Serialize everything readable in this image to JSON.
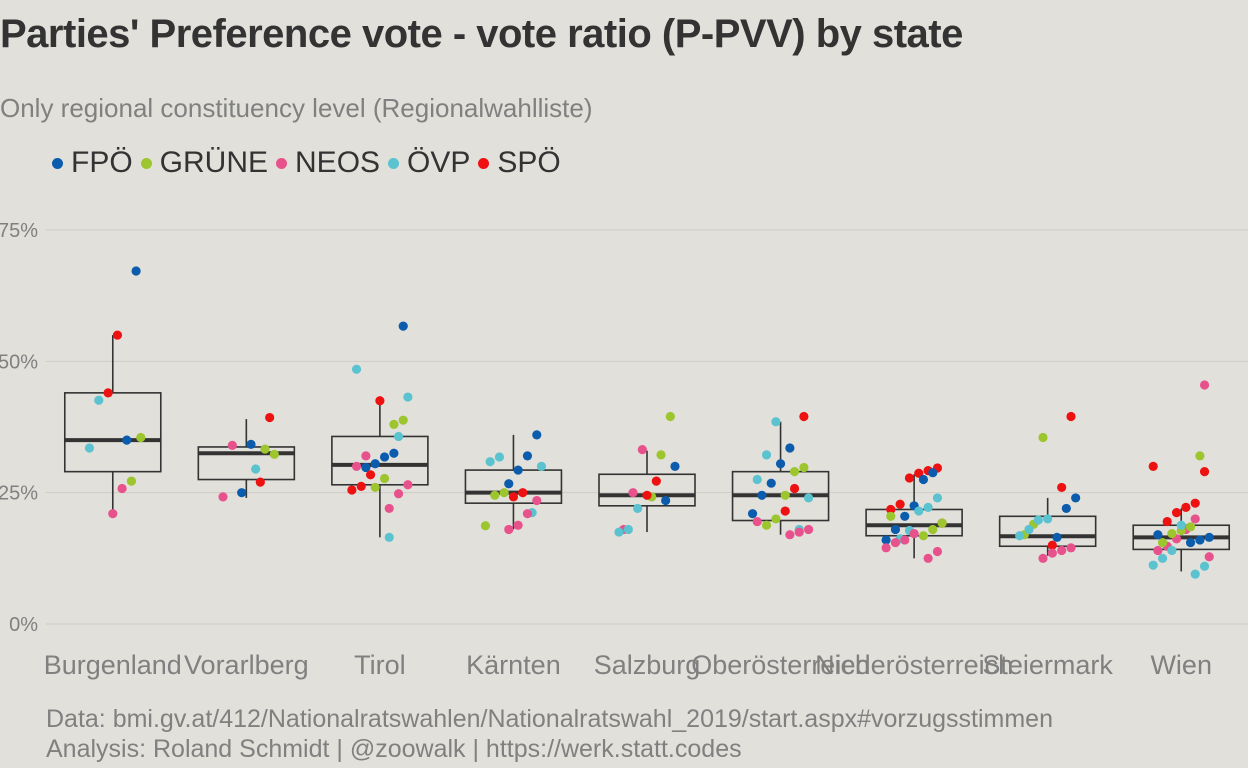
{
  "title": "Parties' Preference vote - vote ratio (P-PVV) by state",
  "subtitle": "Only regional constituency level (Regionalwahlliste)",
  "caption": {
    "line1": "Data: bmi.gv.at/412/Nationalratswahlen/Nationalratswahl_2019/start.aspx#vorzugsstimmen",
    "line2": "Analysis: Roland Schmidt | @zoowalk | https://werk.statt.codes"
  },
  "colors": {
    "FPÖ": "#0b5cad",
    "GRÜNE": "#9cc52e",
    "NEOS": "#e8528c",
    "ÖVP": "#5bc2d0",
    "SPÖ": "#ee1111"
  },
  "chart_data": {
    "type": "boxplot",
    "title": "Parties' Preference vote - vote ratio (P-PVV) by state",
    "subtitle": "Only regional constituency level (Regionalwahlliste)",
    "xlabel": "",
    "ylabel": "",
    "ylim": [
      0,
      0.75
    ],
    "yticks": [
      0,
      0.25,
      0.5,
      0.75
    ],
    "ytick_labels": [
      "0%",
      "25%",
      "50%",
      "75%"
    ],
    "grid": true,
    "legend_placement": "top-left",
    "series_names": [
      "FPÖ",
      "GRÜNE",
      "NEOS",
      "ÖVP",
      "SPÖ"
    ],
    "categories": [
      "Burgenland",
      "Vorarlberg",
      "Tirol",
      "Kärnten",
      "Salzburg",
      "Oberösterreich",
      "Niederösterreich",
      "Steiermark",
      "Wien"
    ],
    "boxes": [
      {
        "category": "Burgenland",
        "q1": 0.29,
        "median": 0.35,
        "q3": 0.44,
        "whisker_low": 0.21,
        "whisker_high": 0.55
      },
      {
        "category": "Vorarlberg",
        "q1": 0.275,
        "median": 0.325,
        "q3": 0.337,
        "whisker_low": 0.24,
        "whisker_high": 0.39
      },
      {
        "category": "Tirol",
        "q1": 0.265,
        "median": 0.303,
        "q3": 0.357,
        "whisker_low": 0.165,
        "whisker_high": 0.43
      },
      {
        "category": "Kärnten",
        "q1": 0.23,
        "median": 0.25,
        "q3": 0.293,
        "whisker_low": 0.18,
        "whisker_high": 0.36
      },
      {
        "category": "Salzburg",
        "q1": 0.225,
        "median": 0.245,
        "q3": 0.285,
        "whisker_low": 0.175,
        "whisker_high": 0.33
      },
      {
        "category": "Oberösterreich",
        "q1": 0.197,
        "median": 0.245,
        "q3": 0.29,
        "whisker_low": 0.17,
        "whisker_high": 0.385
      },
      {
        "category": "Niederösterreich",
        "q1": 0.168,
        "median": 0.188,
        "q3": 0.218,
        "whisker_low": 0.125,
        "whisker_high": 0.285
      },
      {
        "category": "Steiermark",
        "q1": 0.148,
        "median": 0.167,
        "q3": 0.205,
        "whisker_low": 0.13,
        "whisker_high": 0.24
      },
      {
        "category": "Wien",
        "q1": 0.142,
        "median": 0.165,
        "q3": 0.188,
        "whisker_low": 0.1,
        "whisker_high": 0.22
      }
    ],
    "points": [
      {
        "category": "Burgenland",
        "party": "FPÖ",
        "value": 0.672
      },
      {
        "category": "Burgenland",
        "party": "FPÖ",
        "value": 0.35
      },
      {
        "category": "Burgenland",
        "party": "SPÖ",
        "value": 0.55
      },
      {
        "category": "Burgenland",
        "party": "SPÖ",
        "value": 0.44
      },
      {
        "category": "Burgenland",
        "party": "ÖVP",
        "value": 0.426
      },
      {
        "category": "Burgenland",
        "party": "ÖVP",
        "value": 0.335
      },
      {
        "category": "Burgenland",
        "party": "GRÜNE",
        "value": 0.355
      },
      {
        "category": "Burgenland",
        "party": "GRÜNE",
        "value": 0.272
      },
      {
        "category": "Burgenland",
        "party": "NEOS",
        "value": 0.258
      },
      {
        "category": "Burgenland",
        "party": "NEOS",
        "value": 0.21
      },
      {
        "category": "Vorarlberg",
        "party": "SPÖ",
        "value": 0.393
      },
      {
        "category": "Vorarlberg",
        "party": "SPÖ",
        "value": 0.27
      },
      {
        "category": "Vorarlberg",
        "party": "FPÖ",
        "value": 0.342
      },
      {
        "category": "Vorarlberg",
        "party": "FPÖ",
        "value": 0.25
      },
      {
        "category": "Vorarlberg",
        "party": "NEOS",
        "value": 0.34
      },
      {
        "category": "Vorarlberg",
        "party": "NEOS",
        "value": 0.242
      },
      {
        "category": "Vorarlberg",
        "party": "GRÜNE",
        "value": 0.323
      },
      {
        "category": "Vorarlberg",
        "party": "GRÜNE",
        "value": 0.333
      },
      {
        "category": "Vorarlberg",
        "party": "ÖVP",
        "value": 0.295
      },
      {
        "category": "Tirol",
        "party": "FPÖ",
        "value": 0.567
      },
      {
        "category": "Tirol",
        "party": "FPÖ",
        "value": 0.325
      },
      {
        "category": "Tirol",
        "party": "FPÖ",
        "value": 0.318
      },
      {
        "category": "Tirol",
        "party": "FPÖ",
        "value": 0.305
      },
      {
        "category": "Tirol",
        "party": "FPÖ",
        "value": 0.298
      },
      {
        "category": "Tirol",
        "party": "ÖVP",
        "value": 0.485
      },
      {
        "category": "Tirol",
        "party": "ÖVP",
        "value": 0.432
      },
      {
        "category": "Tirol",
        "party": "ÖVP",
        "value": 0.357
      },
      {
        "category": "Tirol",
        "party": "ÖVP",
        "value": 0.165
      },
      {
        "category": "Tirol",
        "party": "SPÖ",
        "value": 0.425
      },
      {
        "category": "Tirol",
        "party": "SPÖ",
        "value": 0.284
      },
      {
        "category": "Tirol",
        "party": "SPÖ",
        "value": 0.262
      },
      {
        "category": "Tirol",
        "party": "SPÖ",
        "value": 0.255
      },
      {
        "category": "Tirol",
        "party": "GRÜNE",
        "value": 0.388
      },
      {
        "category": "Tirol",
        "party": "GRÜNE",
        "value": 0.38
      },
      {
        "category": "Tirol",
        "party": "GRÜNE",
        "value": 0.277
      },
      {
        "category": "Tirol",
        "party": "GRÜNE",
        "value": 0.26
      },
      {
        "category": "Tirol",
        "party": "NEOS",
        "value": 0.32
      },
      {
        "category": "Tirol",
        "party": "NEOS",
        "value": 0.3
      },
      {
        "category": "Tirol",
        "party": "NEOS",
        "value": 0.265
      },
      {
        "category": "Tirol",
        "party": "NEOS",
        "value": 0.248
      },
      {
        "category": "Tirol",
        "party": "NEOS",
        "value": 0.22
      },
      {
        "category": "Kärnten",
        "party": "FPÖ",
        "value": 0.36
      },
      {
        "category": "Kärnten",
        "party": "FPÖ",
        "value": 0.32
      },
      {
        "category": "Kärnten",
        "party": "FPÖ",
        "value": 0.293
      },
      {
        "category": "Kärnten",
        "party": "FPÖ",
        "value": 0.267
      },
      {
        "category": "Kärnten",
        "party": "ÖVP",
        "value": 0.318
      },
      {
        "category": "Kärnten",
        "party": "ÖVP",
        "value": 0.309
      },
      {
        "category": "Kärnten",
        "party": "ÖVP",
        "value": 0.3
      },
      {
        "category": "Kärnten",
        "party": "ÖVP",
        "value": 0.212
      },
      {
        "category": "Kärnten",
        "party": "SPÖ",
        "value": 0.25
      },
      {
        "category": "Kärnten",
        "party": "SPÖ",
        "value": 0.242
      },
      {
        "category": "Kärnten",
        "party": "GRÜNE",
        "value": 0.25
      },
      {
        "category": "Kärnten",
        "party": "GRÜNE",
        "value": 0.245
      },
      {
        "category": "Kärnten",
        "party": "GRÜNE",
        "value": 0.187
      },
      {
        "category": "Kärnten",
        "party": "NEOS",
        "value": 0.235
      },
      {
        "category": "Kärnten",
        "party": "NEOS",
        "value": 0.21
      },
      {
        "category": "Kärnten",
        "party": "NEOS",
        "value": 0.188
      },
      {
        "category": "Kärnten",
        "party": "NEOS",
        "value": 0.18
      },
      {
        "category": "Salzburg",
        "party": "GRÜNE",
        "value": 0.395
      },
      {
        "category": "Salzburg",
        "party": "GRÜNE",
        "value": 0.322
      },
      {
        "category": "Salzburg",
        "party": "GRÜNE",
        "value": 0.242
      },
      {
        "category": "Salzburg",
        "party": "NEOS",
        "value": 0.332
      },
      {
        "category": "Salzburg",
        "party": "NEOS",
        "value": 0.25
      },
      {
        "category": "Salzburg",
        "party": "NEOS",
        "value": 0.18
      },
      {
        "category": "Salzburg",
        "party": "FPÖ",
        "value": 0.3
      },
      {
        "category": "Salzburg",
        "party": "FPÖ",
        "value": 0.235
      },
      {
        "category": "Salzburg",
        "party": "SPÖ",
        "value": 0.272
      },
      {
        "category": "Salzburg",
        "party": "SPÖ",
        "value": 0.245
      },
      {
        "category": "Salzburg",
        "party": "ÖVP",
        "value": 0.22
      },
      {
        "category": "Salzburg",
        "party": "ÖVP",
        "value": 0.18
      },
      {
        "category": "Salzburg",
        "party": "ÖVP",
        "value": 0.175
      },
      {
        "category": "Oberösterreich",
        "party": "SPÖ",
        "value": 0.395
      },
      {
        "category": "Oberösterreich",
        "party": "SPÖ",
        "value": 0.258
      },
      {
        "category": "Oberösterreich",
        "party": "SPÖ",
        "value": 0.215
      },
      {
        "category": "Oberösterreich",
        "party": "ÖVP",
        "value": 0.385
      },
      {
        "category": "Oberösterreich",
        "party": "ÖVP",
        "value": 0.322
      },
      {
        "category": "Oberösterreich",
        "party": "ÖVP",
        "value": 0.275
      },
      {
        "category": "Oberösterreich",
        "party": "ÖVP",
        "value": 0.24
      },
      {
        "category": "Oberösterreich",
        "party": "ÖVP",
        "value": 0.18
      },
      {
        "category": "Oberösterreich",
        "party": "FPÖ",
        "value": 0.335
      },
      {
        "category": "Oberösterreich",
        "party": "FPÖ",
        "value": 0.305
      },
      {
        "category": "Oberösterreich",
        "party": "FPÖ",
        "value": 0.268
      },
      {
        "category": "Oberösterreich",
        "party": "FPÖ",
        "value": 0.245
      },
      {
        "category": "Oberösterreich",
        "party": "FPÖ",
        "value": 0.21
      },
      {
        "category": "Oberösterreich",
        "party": "GRÜNE",
        "value": 0.298
      },
      {
        "category": "Oberösterreich",
        "party": "GRÜNE",
        "value": 0.29
      },
      {
        "category": "Oberösterreich",
        "party": "GRÜNE",
        "value": 0.245
      },
      {
        "category": "Oberösterreich",
        "party": "GRÜNE",
        "value": 0.2
      },
      {
        "category": "Oberösterreich",
        "party": "GRÜNE",
        "value": 0.188
      },
      {
        "category": "Oberösterreich",
        "party": "NEOS",
        "value": 0.195
      },
      {
        "category": "Oberösterreich",
        "party": "NEOS",
        "value": 0.18
      },
      {
        "category": "Oberösterreich",
        "party": "NEOS",
        "value": 0.175
      },
      {
        "category": "Oberösterreich",
        "party": "NEOS",
        "value": 0.17
      },
      {
        "category": "Niederösterreich",
        "party": "SPÖ",
        "value": 0.297
      },
      {
        "category": "Niederösterreich",
        "party": "SPÖ",
        "value": 0.292
      },
      {
        "category": "Niederösterreich",
        "party": "SPÖ",
        "value": 0.287
      },
      {
        "category": "Niederösterreich",
        "party": "SPÖ",
        "value": 0.278
      },
      {
        "category": "Niederösterreich",
        "party": "SPÖ",
        "value": 0.228
      },
      {
        "category": "Niederösterreich",
        "party": "SPÖ",
        "value": 0.218
      },
      {
        "category": "Niederösterreich",
        "party": "SPÖ",
        "value": 0.192
      },
      {
        "category": "Niederösterreich",
        "party": "FPÖ",
        "value": 0.288
      },
      {
        "category": "Niederösterreich",
        "party": "FPÖ",
        "value": 0.275
      },
      {
        "category": "Niederösterreich",
        "party": "FPÖ",
        "value": 0.225
      },
      {
        "category": "Niederösterreich",
        "party": "FPÖ",
        "value": 0.205
      },
      {
        "category": "Niederösterreich",
        "party": "FPÖ",
        "value": 0.18
      },
      {
        "category": "Niederösterreich",
        "party": "FPÖ",
        "value": 0.16
      },
      {
        "category": "Niederösterreich",
        "party": "ÖVP",
        "value": 0.24
      },
      {
        "category": "Niederösterreich",
        "party": "ÖVP",
        "value": 0.222
      },
      {
        "category": "Niederösterreich",
        "party": "ÖVP",
        "value": 0.215
      },
      {
        "category": "Niederösterreich",
        "party": "ÖVP",
        "value": 0.178
      },
      {
        "category": "Niederösterreich",
        "party": "ÖVP",
        "value": 0.162
      },
      {
        "category": "Niederösterreich",
        "party": "GRÜNE",
        "value": 0.205
      },
      {
        "category": "Niederösterreich",
        "party": "GRÜNE",
        "value": 0.192
      },
      {
        "category": "Niederösterreich",
        "party": "GRÜNE",
        "value": 0.18
      },
      {
        "category": "Niederösterreich",
        "party": "GRÜNE",
        "value": 0.168
      },
      {
        "category": "Niederösterreich",
        "party": "NEOS",
        "value": 0.172
      },
      {
        "category": "Niederösterreich",
        "party": "NEOS",
        "value": 0.16
      },
      {
        "category": "Niederösterreich",
        "party": "NEOS",
        "value": 0.155
      },
      {
        "category": "Niederösterreich",
        "party": "NEOS",
        "value": 0.145
      },
      {
        "category": "Niederösterreich",
        "party": "NEOS",
        "value": 0.138
      },
      {
        "category": "Niederösterreich",
        "party": "NEOS",
        "value": 0.125
      },
      {
        "category": "Steiermark",
        "party": "SPÖ",
        "value": 0.395
      },
      {
        "category": "Steiermark",
        "party": "SPÖ",
        "value": 0.26
      },
      {
        "category": "Steiermark",
        "party": "SPÖ",
        "value": 0.15
      },
      {
        "category": "Steiermark",
        "party": "GRÜNE",
        "value": 0.355
      },
      {
        "category": "Steiermark",
        "party": "GRÜNE",
        "value": 0.19
      },
      {
        "category": "Steiermark",
        "party": "GRÜNE",
        "value": 0.17
      },
      {
        "category": "Steiermark",
        "party": "FPÖ",
        "value": 0.24
      },
      {
        "category": "Steiermark",
        "party": "FPÖ",
        "value": 0.22
      },
      {
        "category": "Steiermark",
        "party": "FPÖ",
        "value": 0.165
      },
      {
        "category": "Steiermark",
        "party": "ÖVP",
        "value": 0.2
      },
      {
        "category": "Steiermark",
        "party": "ÖVP",
        "value": 0.198
      },
      {
        "category": "Steiermark",
        "party": "ÖVP",
        "value": 0.18
      },
      {
        "category": "Steiermark",
        "party": "ÖVP",
        "value": 0.168
      },
      {
        "category": "Steiermark",
        "party": "NEOS",
        "value": 0.145
      },
      {
        "category": "Steiermark",
        "party": "NEOS",
        "value": 0.14
      },
      {
        "category": "Steiermark",
        "party": "NEOS",
        "value": 0.135
      },
      {
        "category": "Steiermark",
        "party": "NEOS",
        "value": 0.125
      },
      {
        "category": "Wien",
        "party": "NEOS",
        "value": 0.455
      },
      {
        "category": "Wien",
        "party": "NEOS",
        "value": 0.2
      },
      {
        "category": "Wien",
        "party": "NEOS",
        "value": 0.18
      },
      {
        "category": "Wien",
        "party": "NEOS",
        "value": 0.162
      },
      {
        "category": "Wien",
        "party": "NEOS",
        "value": 0.148
      },
      {
        "category": "Wien",
        "party": "NEOS",
        "value": 0.14
      },
      {
        "category": "Wien",
        "party": "NEOS",
        "value": 0.128
      },
      {
        "category": "Wien",
        "party": "GRÜNE",
        "value": 0.32
      },
      {
        "category": "Wien",
        "party": "GRÜNE",
        "value": 0.185
      },
      {
        "category": "Wien",
        "party": "GRÜNE",
        "value": 0.178
      },
      {
        "category": "Wien",
        "party": "GRÜNE",
        "value": 0.172
      },
      {
        "category": "Wien",
        "party": "GRÜNE",
        "value": 0.155
      },
      {
        "category": "Wien",
        "party": "SPÖ",
        "value": 0.3
      },
      {
        "category": "Wien",
        "party": "SPÖ",
        "value": 0.29
      },
      {
        "category": "Wien",
        "party": "SPÖ",
        "value": 0.23
      },
      {
        "category": "Wien",
        "party": "SPÖ",
        "value": 0.222
      },
      {
        "category": "Wien",
        "party": "SPÖ",
        "value": 0.212
      },
      {
        "category": "Wien",
        "party": "SPÖ",
        "value": 0.195
      },
      {
        "category": "Wien",
        "party": "FPÖ",
        "value": 0.17
      },
      {
        "category": "Wien",
        "party": "FPÖ",
        "value": 0.165
      },
      {
        "category": "Wien",
        "party": "FPÖ",
        "value": 0.16
      },
      {
        "category": "Wien",
        "party": "FPÖ",
        "value": 0.155
      },
      {
        "category": "Wien",
        "party": "ÖVP",
        "value": 0.188
      },
      {
        "category": "Wien",
        "party": "ÖVP",
        "value": 0.14
      },
      {
        "category": "Wien",
        "party": "ÖVP",
        "value": 0.125
      },
      {
        "category": "Wien",
        "party": "ÖVP",
        "value": 0.112
      },
      {
        "category": "Wien",
        "party": "ÖVP",
        "value": 0.11
      },
      {
        "category": "Wien",
        "party": "ÖVP",
        "value": 0.095
      }
    ]
  }
}
